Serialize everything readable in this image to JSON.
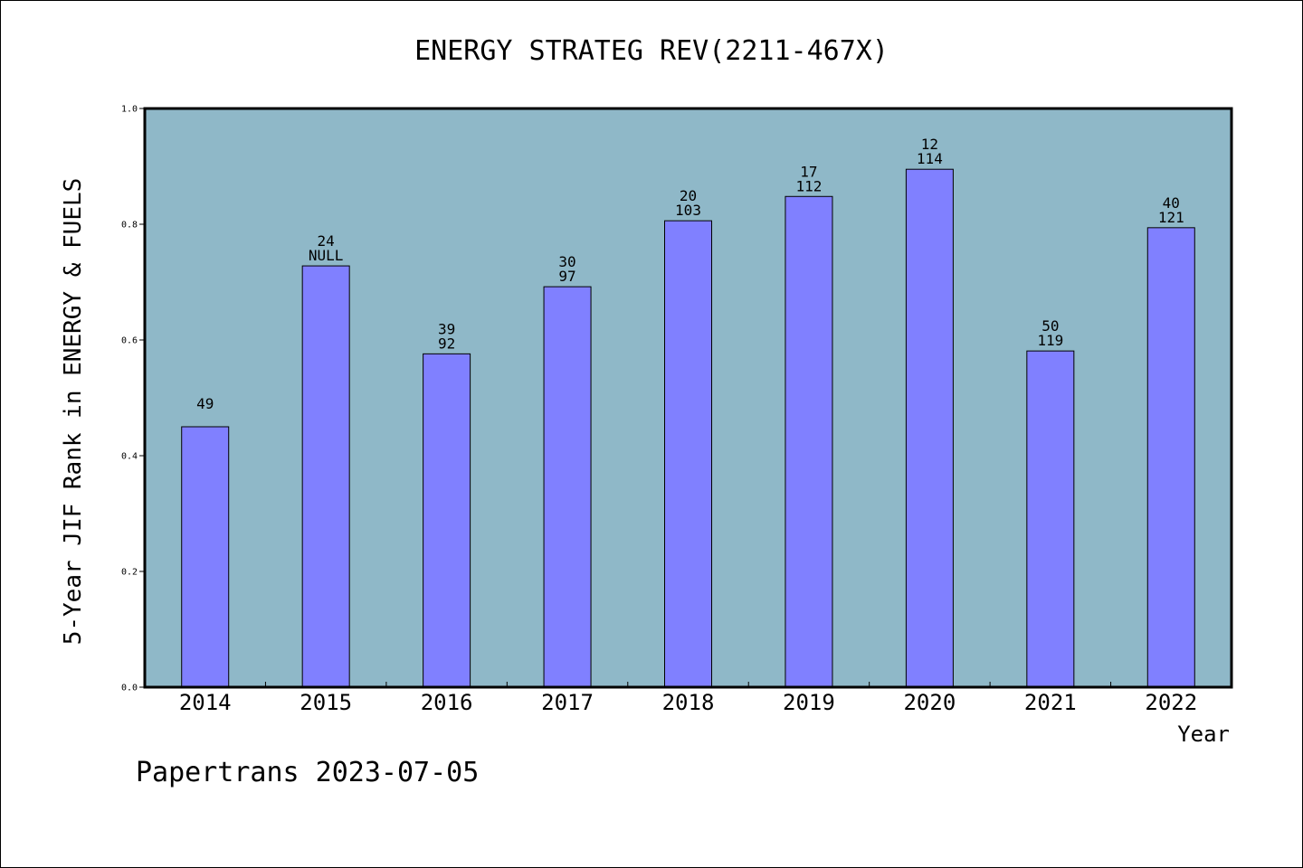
{
  "chart_data": {
    "type": "bar",
    "title": "ENERGY STRATEG REV(2211-467X)",
    "xlabel": "Year",
    "ylabel": "5-Year JIF Rank in ENERGY & FUELS",
    "ylim": [
      0,
      1.0
    ],
    "yticks": [
      "0.0",
      "0.2",
      "0.4",
      "0.6",
      "0.8",
      "1.0"
    ],
    "categories": [
      "2014",
      "2015",
      "2016",
      "2017",
      "2018",
      "2019",
      "2020",
      "2021",
      "2022"
    ],
    "values": [
      0.45,
      0.728,
      0.576,
      0.692,
      0.806,
      0.848,
      0.895,
      0.581,
      0.794
    ],
    "label_top": [
      "",
      "24",
      "39",
      "30",
      "20",
      "17",
      "12",
      "50",
      "40"
    ],
    "label_bottom": [
      "49",
      "NULL",
      "92",
      "97",
      "103",
      "112",
      "114",
      "119",
      "121"
    ],
    "grid": false,
    "colors": {
      "plot_bg": "#8fb8c8",
      "bar": "#8080ff",
      "bar_edge": "#000000"
    }
  },
  "footer": "Papertrans 2023-07-05"
}
